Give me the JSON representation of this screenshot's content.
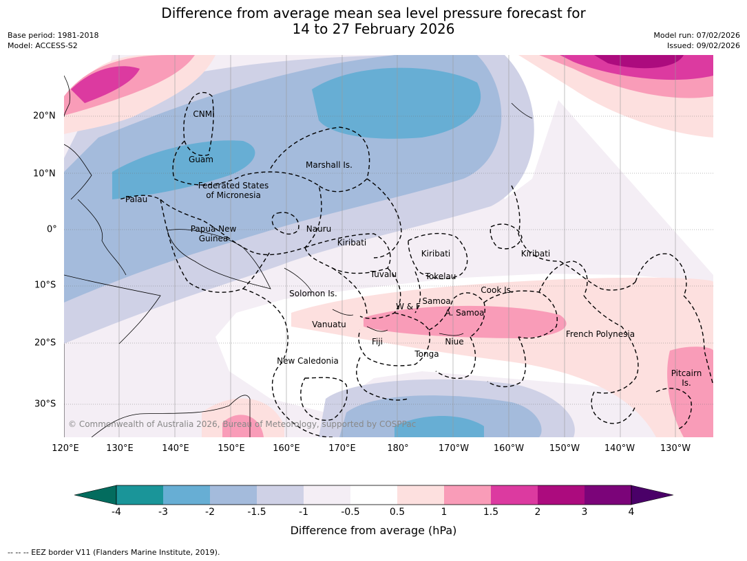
{
  "title": {
    "line1": "Difference from average mean sea level pressure forecast for",
    "line2": "14 to 27 February 2026"
  },
  "meta": {
    "base_period": "Base period: 1981-2018",
    "model": "Model: ACCESS-S2",
    "model_run": "Model run: 07/02/2026",
    "issued": "Issued: 09/02/2026"
  },
  "copyright": "© Commonwealth of Australia 2026, Bureau of Meteorology, supported by COSPPac",
  "axes": {
    "lon_labels": [
      "120°E",
      "130°E",
      "140°E",
      "150°E",
      "160°E",
      "170°E",
      "180°",
      "170°W",
      "160°W",
      "150°W",
      "140°W",
      "130°W"
    ],
    "lat_labels": [
      "20°N",
      "10°N",
      "0°",
      "10°S",
      "20°S",
      "30°S"
    ]
  },
  "regions": {
    "cnmi": "CNMI",
    "guam": "Guam",
    "marshall": "Marshall Is.",
    "fsm_1": "Federated States",
    "fsm_2": "of Micronesia",
    "palau": "Palau",
    "png_1": "Papua New",
    "png_2": "Guinea",
    "nauru": "Nauru",
    "kiribati_w": "Kiribati",
    "kiribati_c": "Kiribati",
    "kiribati_e": "Kiribati",
    "tuvalu": "Tuvalu",
    "tokelau": "Tokelau",
    "solomon": "Solomon Is.",
    "cook": "Cook Is.",
    "samoa": "Samoa",
    "wallis": "W & F",
    "asamoa": "A. Samoa",
    "vanuatu": "Vanuatu",
    "fiji": "Fiji",
    "niue": "Niue",
    "tonga": "Tonga",
    "french_polynesia": "French Polynesia",
    "new_caledonia": "New Caledonia",
    "pitcairn_1": "Pitcairn",
    "pitcairn_2": "Is."
  },
  "colorbar": {
    "title": "Difference from average (hPa)",
    "ticks": [
      "-4",
      "-3",
      "-2",
      "-1.5",
      "-1",
      "-0.5",
      "0.5",
      "1",
      "1.5",
      "2",
      "3",
      "4"
    ],
    "colors": [
      "#1a9599",
      "#67aed4",
      "#a4bbdc",
      "#cfd1e6",
      "#f4eef5",
      "#ffffff",
      "#fde0df",
      "#f99cb8",
      "#dc3aa0",
      "#ac0b7e",
      "#7b0479"
    ],
    "under_color": "#036c5e",
    "over_color": "#4a0068"
  },
  "legend": "--  --  -- EEZ border V11 (Flanders Marine Institute, 2019)."
}
